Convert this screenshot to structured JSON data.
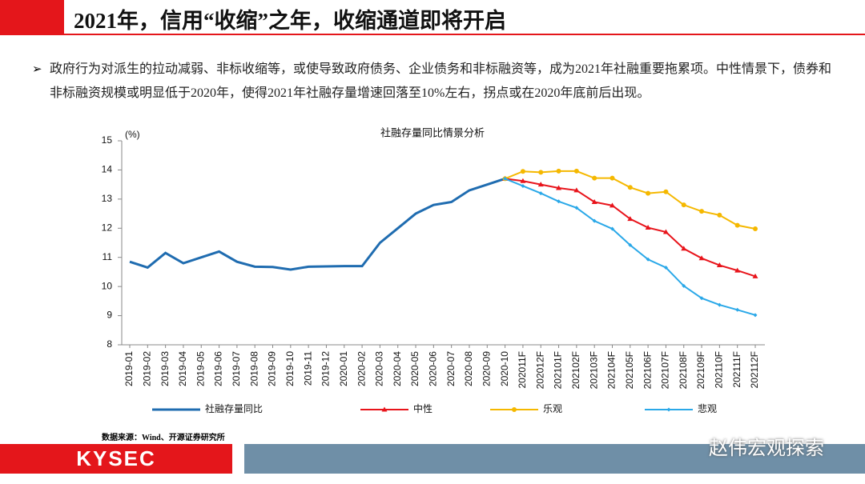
{
  "header": {
    "title": "2021年，信用“收缩”之年，收缩通道即将开启"
  },
  "bullet": "政府行为对派生的拉动减弱、非标收缩等，或使导致政府债务、企业债务和非标融资等，成为2021年社融重要拖累项。中性情景下，债券和非标融资规模或明显低于2020年，使得2021年社融存量增速回落至10%左右，拐点或在2020年底前后出现。",
  "chart_data": {
    "type": "line",
    "title": "社融存量同比情景分析",
    "y_label": "(%)",
    "categories": [
      "2019-01",
      "2019-02",
      "2019-03",
      "2019-04",
      "2019-05",
      "2019-06",
      "2019-07",
      "2019-08",
      "2019-09",
      "2019-10",
      "2019-11",
      "2019-12",
      "2020-01",
      "2020-02",
      "2020-03",
      "2020-04",
      "2020-05",
      "2020-06",
      "2020-07",
      "2020-08",
      "2020-09",
      "2020-10",
      "202011F",
      "202012F",
      "202101F",
      "202102F",
      "202103F",
      "202104F",
      "202105F",
      "202106F",
      "202107F",
      "202108F",
      "202109F",
      "202110F",
      "202111F",
      "202112F"
    ],
    "series": [
      {
        "name": "社融存量同比",
        "color": "#1f6cb0",
        "marker": "none",
        "values": [
          10.85,
          10.65,
          11.15,
          10.8,
          11.0,
          11.2,
          10.85,
          10.68,
          10.67,
          10.58,
          10.68,
          10.69,
          10.7,
          10.7,
          11.5,
          12.0,
          12.5,
          12.8,
          12.9,
          13.3,
          13.5,
          13.7,
          null,
          null,
          null,
          null,
          null,
          null,
          null,
          null,
          null,
          null,
          null,
          null,
          null,
          null
        ]
      },
      {
        "name": "中性",
        "color": "#e8141b",
        "marker": "triangle",
        "values": [
          null,
          null,
          null,
          null,
          null,
          null,
          null,
          null,
          null,
          null,
          null,
          null,
          null,
          null,
          null,
          null,
          null,
          null,
          null,
          null,
          null,
          13.7,
          13.62,
          13.5,
          13.38,
          13.3,
          12.9,
          12.78,
          12.32,
          12.02,
          11.87,
          11.3,
          10.97,
          10.73,
          10.55,
          10.35
        ]
      },
      {
        "name": "乐观",
        "color": "#f5b800",
        "marker": "circle",
        "values": [
          null,
          null,
          null,
          null,
          null,
          null,
          null,
          null,
          null,
          null,
          null,
          null,
          null,
          null,
          null,
          null,
          null,
          null,
          null,
          null,
          null,
          13.7,
          13.95,
          13.92,
          13.96,
          13.96,
          13.72,
          13.72,
          13.4,
          13.2,
          13.25,
          12.8,
          12.58,
          12.45,
          12.1,
          11.98
        ]
      },
      {
        "name": "悲观",
        "color": "#2aa8e8",
        "marker": "diamond",
        "values": [
          null,
          null,
          null,
          null,
          null,
          null,
          null,
          null,
          null,
          null,
          null,
          null,
          null,
          null,
          null,
          null,
          null,
          null,
          null,
          null,
          null,
          13.7,
          13.45,
          13.2,
          12.92,
          12.7,
          12.25,
          11.98,
          11.42,
          10.93,
          10.65,
          10.02,
          9.6,
          9.37,
          9.2,
          9.02
        ]
      }
    ],
    "ylim": [
      8,
      15
    ],
    "yticks": [
      8,
      9,
      10,
      11,
      12,
      13,
      14,
      15
    ],
    "grid": false,
    "legend": "bottom"
  },
  "source": "数据来源：Wind、开源证券研究所",
  "footer": {
    "logo": "KYSEC",
    "watermark": "赵伟宏观探索"
  }
}
